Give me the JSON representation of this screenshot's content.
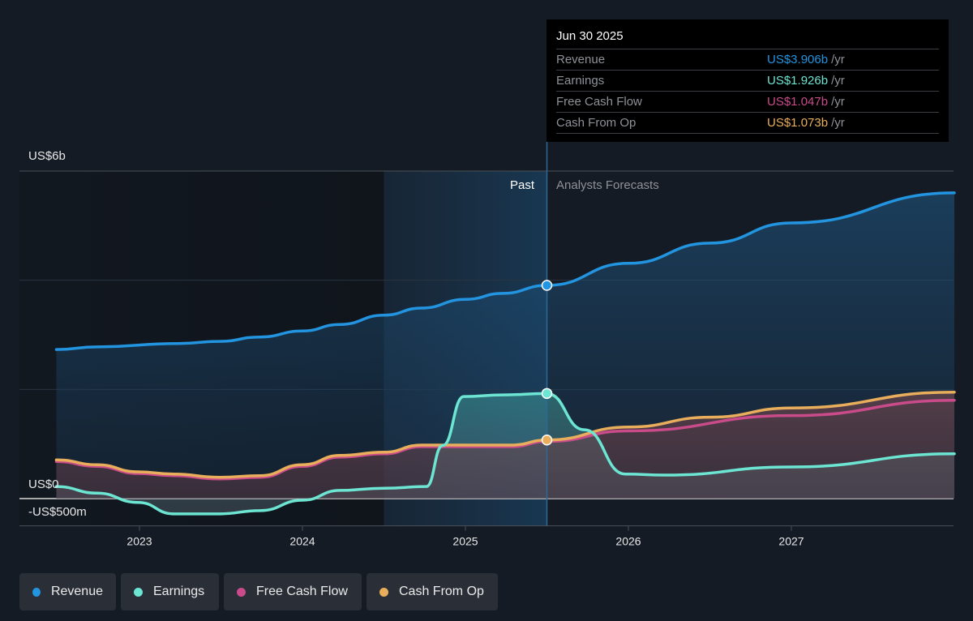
{
  "tooltip": {
    "date": "Jun 30 2025",
    "rows": [
      {
        "label": "Revenue",
        "value": "US$3.906b",
        "unit": "/yr",
        "color": "#2394df"
      },
      {
        "label": "Earnings",
        "value": "US$1.926b",
        "unit": "/yr",
        "color": "#6ce5d2"
      },
      {
        "label": "Free Cash Flow",
        "value": "US$1.047b",
        "unit": "/yr",
        "color": "#c94b8a"
      },
      {
        "label": "Cash From Op",
        "value": "US$1.073b",
        "unit": "/yr",
        "color": "#e9ae5b"
      }
    ]
  },
  "segments": {
    "past": "Past",
    "forecast": "Analysts Forecasts"
  },
  "legend": [
    {
      "label": "Revenue",
      "color": "#2394df"
    },
    {
      "label": "Earnings",
      "color": "#6ce5d2"
    },
    {
      "label": "Free Cash Flow",
      "color": "#c94b8a"
    },
    {
      "label": "Cash From Op",
      "color": "#e9ae5b"
    }
  ],
  "chart_data": {
    "type": "line",
    "title": "",
    "xlabel": "",
    "ylabel": "",
    "units": "US$ billions",
    "xlim": [
      2022.49,
      2028.0
    ],
    "ylim": [
      -0.5,
      6
    ],
    "x_ticks": [
      2023,
      2024,
      2025,
      2026,
      2027
    ],
    "x_tick_labels": [
      "2023",
      "2024",
      "2025",
      "2026",
      "2027"
    ],
    "y_ticks": [
      6,
      0,
      -0.5
    ],
    "y_tick_labels": [
      "US$6b",
      "US$0",
      "-US$500m"
    ],
    "y_gridlines": [
      6,
      4,
      2,
      0,
      -0.5
    ],
    "highlight_date": 2025.5,
    "highlight_label": "Jun 30 2025",
    "past_band": [
      2024.5,
      2025.5
    ],
    "series": [
      {
        "name": "Revenue",
        "color": "#2394df",
        "x": [
          2022.49,
          2022.74,
          2023.24,
          2023.49,
          2023.74,
          2024.0,
          2024.23,
          2024.5,
          2024.73,
          2025.0,
          2025.23,
          2025.5,
          2026.0,
          2026.5,
          2027.0,
          2028.0
        ],
        "values": [
          2.73,
          2.78,
          2.84,
          2.88,
          2.96,
          3.07,
          3.19,
          3.36,
          3.49,
          3.65,
          3.76,
          3.906,
          4.31,
          4.68,
          5.05,
          5.6
        ]
      },
      {
        "name": "Earnings",
        "color": "#6ce5d2",
        "x": [
          2022.49,
          2022.74,
          2022.99,
          2023.21,
          2023.49,
          2023.74,
          2024.0,
          2024.23,
          2024.5,
          2024.76,
          2024.86,
          2024.99,
          2025.23,
          2025.5,
          2025.73,
          2025.98,
          2026.22,
          2027.0,
          2028.0
        ],
        "values": [
          0.22,
          0.1,
          -0.07,
          -0.28,
          -0.28,
          -0.22,
          -0.03,
          0.15,
          0.19,
          0.22,
          0.97,
          1.87,
          1.9,
          1.926,
          1.26,
          0.45,
          0.43,
          0.58,
          0.82
        ]
      },
      {
        "name": "Free Cash Flow",
        "color": "#c94b8a",
        "x": [
          2022.49,
          2022.74,
          2022.99,
          2023.21,
          2023.49,
          2023.74,
          2024.0,
          2024.23,
          2024.5,
          2024.73,
          2025.0,
          2025.28,
          2025.5,
          2026.0,
          2027.0,
          2028.0
        ],
        "values": [
          0.68,
          0.59,
          0.46,
          0.42,
          0.36,
          0.39,
          0.59,
          0.76,
          0.82,
          0.95,
          0.95,
          0.95,
          1.047,
          1.24,
          1.52,
          1.8
        ]
      },
      {
        "name": "Cash From Op",
        "color": "#e9ae5b",
        "x": [
          2022.49,
          2022.74,
          2022.99,
          2023.21,
          2023.49,
          2023.74,
          2024.0,
          2024.23,
          2024.5,
          2024.73,
          2025.0,
          2025.28,
          2025.5,
          2026.0,
          2026.5,
          2027.0,
          2028.0
        ],
        "values": [
          0.71,
          0.62,
          0.49,
          0.45,
          0.39,
          0.42,
          0.62,
          0.79,
          0.85,
          0.98,
          0.98,
          0.98,
          1.073,
          1.31,
          1.49,
          1.66,
          1.95
        ]
      }
    ]
  }
}
